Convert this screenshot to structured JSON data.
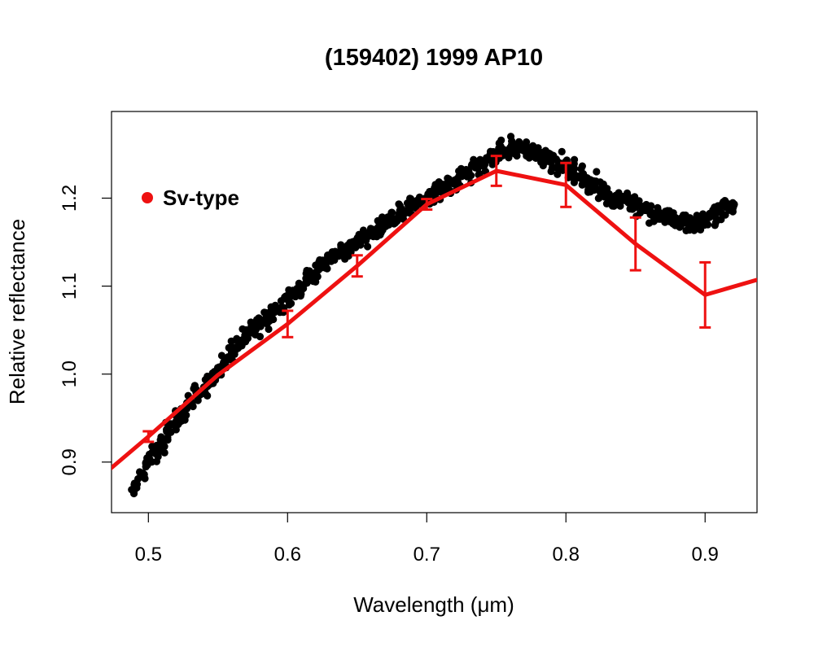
{
  "chart_data": {
    "type": "scatter",
    "title": "(159402) 1999 AP10",
    "xlabel": "Wavelength (μm)",
    "ylabel": "Relative reflectance",
    "xlim": [
      0.4735,
      0.9373
    ],
    "ylim": [
      0.8425,
      1.2985
    ],
    "x_ticks": [
      0.5,
      0.6,
      0.7,
      0.8,
      0.9
    ],
    "x_tick_labels": [
      "0.5",
      "0.6",
      "0.7",
      "0.8",
      "0.9"
    ],
    "y_ticks": [
      0.9,
      1.0,
      1.1,
      1.2
    ],
    "y_tick_labels": [
      "0.9",
      "1.0",
      "1.1",
      "1.2"
    ],
    "grid": false,
    "legend": {
      "position": "top-left",
      "entries": [
        {
          "label": "Sv-type",
          "color": "#ee1111"
        }
      ]
    },
    "series": [
      {
        "kind": "points",
        "color": "#000000",
        "x": [
          0.49,
          0.495,
          0.5,
          0.505,
          0.51,
          0.515,
          0.52,
          0.525,
          0.53,
          0.535,
          0.54,
          0.545,
          0.55,
          0.555,
          0.56,
          0.565,
          0.57,
          0.575,
          0.58,
          0.585,
          0.59,
          0.595,
          0.6,
          0.605,
          0.61,
          0.615,
          0.62,
          0.625,
          0.63,
          0.635,
          0.64,
          0.645,
          0.65,
          0.655,
          0.66,
          0.665,
          0.67,
          0.675,
          0.68,
          0.685,
          0.69,
          0.695,
          0.7,
          0.705,
          0.71,
          0.715,
          0.72,
          0.725,
          0.73,
          0.735,
          0.74,
          0.745,
          0.75,
          0.755,
          0.76,
          0.765,
          0.77,
          0.775,
          0.78,
          0.785,
          0.79,
          0.795,
          0.8,
          0.805,
          0.81,
          0.815,
          0.82,
          0.825,
          0.83,
          0.835,
          0.84,
          0.845,
          0.85,
          0.855,
          0.86,
          0.865,
          0.87,
          0.875,
          0.88,
          0.885,
          0.89,
          0.895,
          0.9,
          0.905,
          0.91,
          0.915,
          0.92
        ],
        "y": [
          0.87,
          0.885,
          0.9,
          0.91,
          0.92,
          0.935,
          0.945,
          0.955,
          0.965,
          0.975,
          0.985,
          0.995,
          1.005,
          1.015,
          1.025,
          1.035,
          1.045,
          1.05,
          1.06,
          1.065,
          1.07,
          1.075,
          1.085,
          1.09,
          1.1,
          1.11,
          1.115,
          1.125,
          1.13,
          1.135,
          1.14,
          1.145,
          1.15,
          1.155,
          1.16,
          1.165,
          1.17,
          1.175,
          1.18,
          1.185,
          1.19,
          1.195,
          1.2,
          1.205,
          1.21,
          1.215,
          1.22,
          1.225,
          1.23,
          1.235,
          1.24,
          1.245,
          1.25,
          1.255,
          1.257,
          1.255,
          1.255,
          1.252,
          1.25,
          1.248,
          1.245,
          1.24,
          1.235,
          1.23,
          1.225,
          1.22,
          1.215,
          1.21,
          1.205,
          1.2,
          1.2,
          1.195,
          1.19,
          1.19,
          1.185,
          1.18,
          1.18,
          1.175,
          1.175,
          1.175,
          1.17,
          1.17,
          1.175,
          1.18,
          1.185,
          1.19,
          1.19
        ]
      },
      {
        "kind": "line-errorbars",
        "name": "Sv-type",
        "color": "#ee1111",
        "x": [
          0.45,
          0.5,
          0.55,
          0.6,
          0.65,
          0.7,
          0.75,
          0.8,
          0.85,
          0.9,
          0.95
        ],
        "y": [
          0.862,
          0.929,
          0.999,
          1.057,
          1.123,
          1.193,
          1.231,
          1.215,
          1.148,
          1.09,
          1.113
        ],
        "err": [
          null,
          0.006,
          null,
          0.015,
          0.012,
          0.006,
          0.017,
          0.025,
          0.03,
          0.037,
          null
        ]
      }
    ]
  }
}
